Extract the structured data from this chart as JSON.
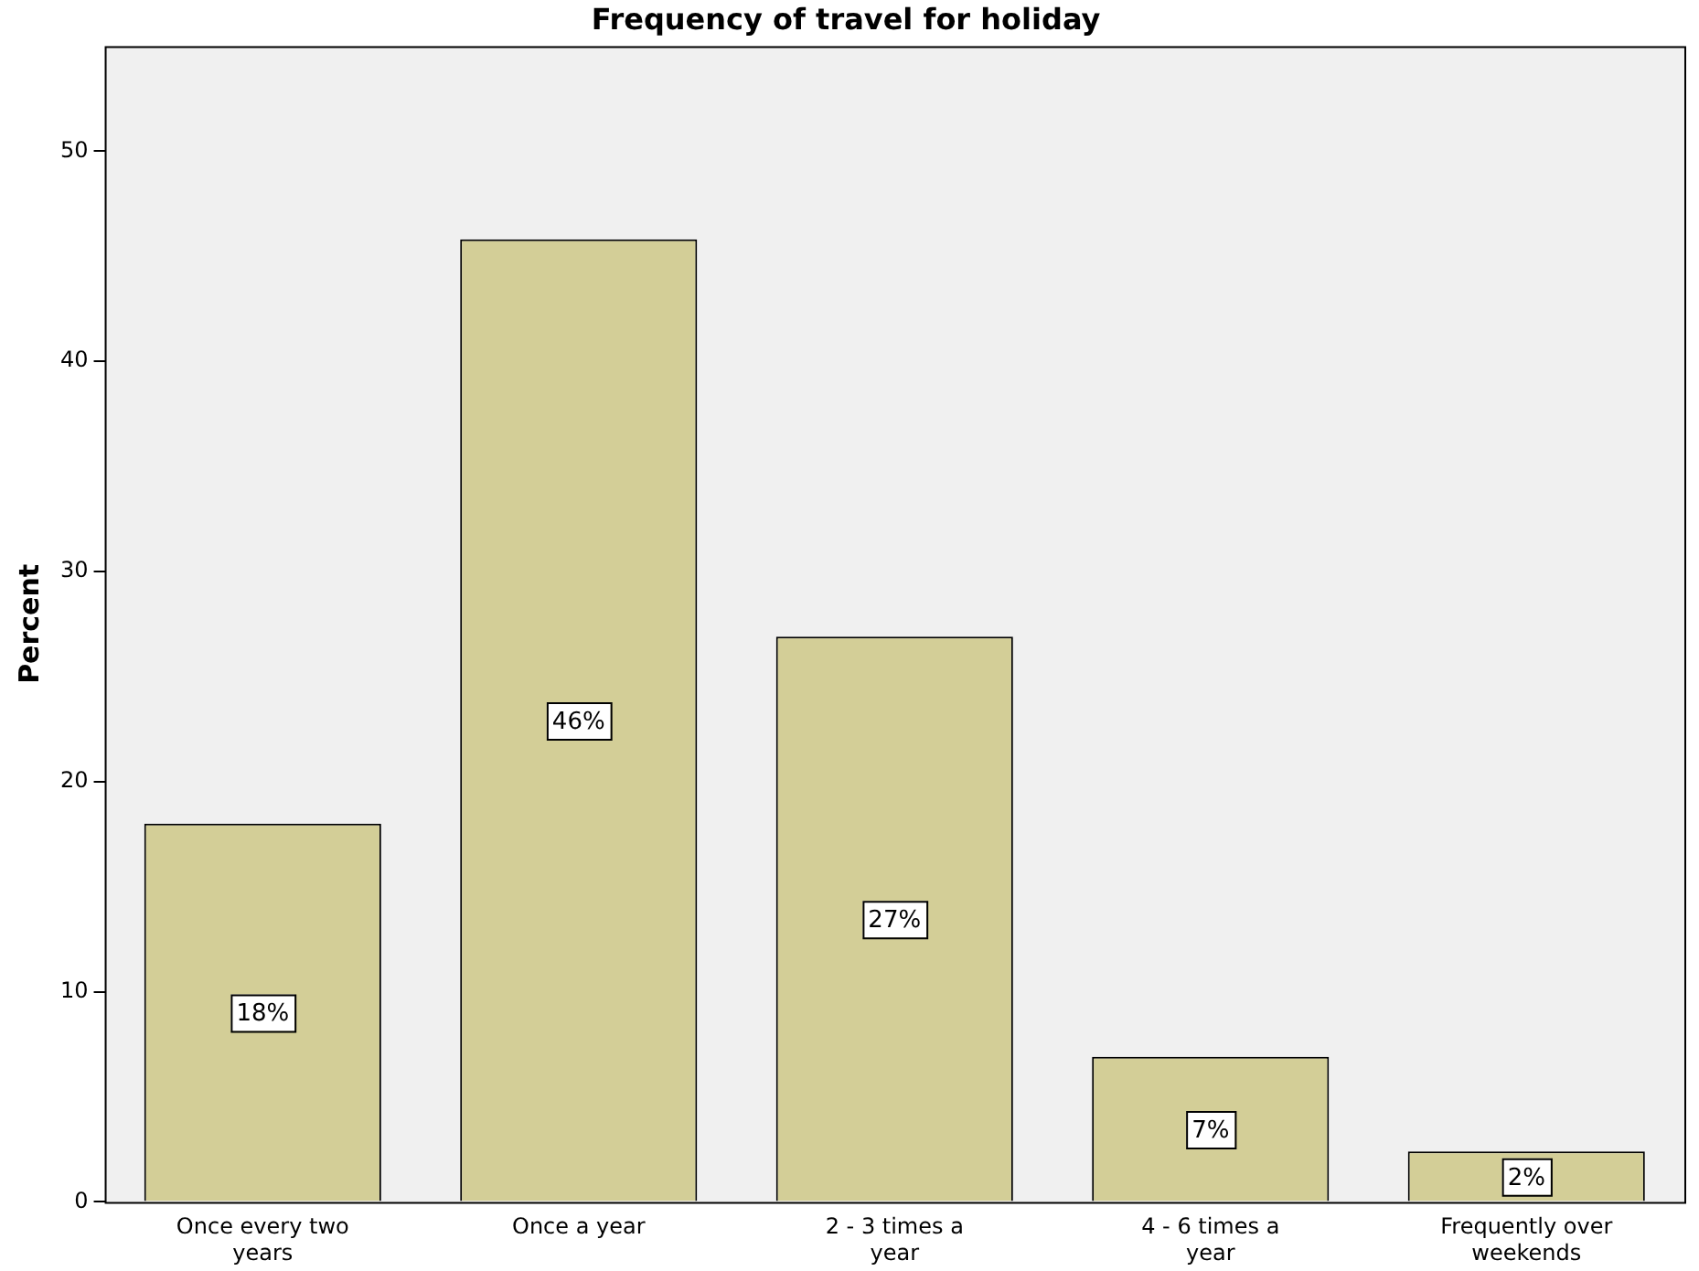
{
  "chart_data": {
    "type": "bar",
    "title": "Frequency of travel for holiday",
    "ylabel": "Percent",
    "categories": [
      "Once every two years",
      "Once a year",
      "2 - 3 times a year",
      "4 - 6 times a year",
      "Frequently over weekends"
    ],
    "values": [
      18,
      45.8,
      26.9,
      6.9,
      2.4
    ],
    "value_labels": [
      "18%",
      "46%",
      "27%",
      "7%",
      "2%"
    ],
    "color": "#d3ce97",
    "ylim": [
      0,
      55
    ],
    "yticks": [
      0,
      10,
      20,
      30,
      40,
      50
    ],
    "grid": false,
    "legend": false
  }
}
